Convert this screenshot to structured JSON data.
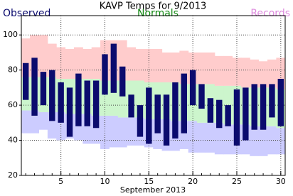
{
  "chart_data": {
    "type": "range-bar",
    "title": "KAVP Temps for 9/2013",
    "xlabel": "September 2013",
    "x": [
      1,
      2,
      3,
      4,
      5,
      6,
      7,
      8,
      9,
      10,
      11,
      12,
      13,
      14,
      15,
      16,
      17,
      18,
      19,
      20,
      21,
      22,
      23,
      24,
      25,
      26,
      27,
      28,
      29,
      30
    ],
    "xlim": [
      0.5,
      30.5
    ],
    "xticks": [
      5,
      10,
      15,
      20,
      25,
      30
    ],
    "ylim": [
      20,
      111
    ],
    "yticks": [
      20,
      40,
      60,
      80,
      100
    ],
    "grid": true,
    "observed": {
      "name": "Observed",
      "color": "#0b0b6e",
      "high": [
        84,
        87,
        79,
        80,
        73,
        70,
        78,
        74,
        74,
        89,
        95,
        82,
        66,
        60,
        70,
        66,
        66,
        73,
        78,
        80,
        72,
        64,
        63,
        60,
        69,
        70,
        72,
        72,
        72,
        75
      ],
      "low": [
        63,
        54,
        60,
        51,
        50,
        42,
        48,
        48,
        47,
        66,
        67,
        65,
        53,
        42,
        38,
        44,
        37,
        41,
        44,
        60,
        58,
        50,
        47,
        48,
        37,
        40,
        46,
        46,
        53,
        48
      ]
    },
    "normals": {
      "name": "Normals",
      "color": "#ccf5cc",
      "text_color": "#118811",
      "high": [
        76,
        76,
        76,
        76,
        75,
        75,
        75,
        75,
        75,
        74,
        74,
        74,
        74,
        74,
        73,
        73,
        73,
        73,
        72,
        72,
        72,
        72,
        71,
        71,
        71,
        70,
        70,
        70,
        70,
        69
      ],
      "low": [
        57,
        57,
        56,
        56,
        56,
        55,
        55,
        55,
        54,
        54,
        54,
        53,
        53,
        53,
        52,
        52,
        52,
        51,
        51,
        51,
        50,
        50,
        50,
        49,
        49,
        49,
        48,
        48,
        48,
        47
      ]
    },
    "records": {
      "name": "Records",
      "high_color": "#ffcccc",
      "low_color": "#ccccff",
      "text_color": "#dd88dd",
      "high": [
        98,
        100,
        100,
        95,
        93,
        92,
        93,
        92,
        93,
        97,
        97,
        97,
        93,
        92,
        92,
        92,
        90,
        90,
        91,
        90,
        90,
        90,
        88,
        88,
        87,
        87,
        86,
        85,
        86,
        87
      ],
      "low": [
        44,
        44,
        46,
        41,
        40,
        41,
        40,
        38,
        38,
        35,
        36,
        36,
        37,
        37,
        36,
        35,
        34,
        34,
        35,
        33,
        33,
        33,
        32,
        32,
        32,
        32,
        31,
        31,
        32,
        32
      ]
    }
  }
}
